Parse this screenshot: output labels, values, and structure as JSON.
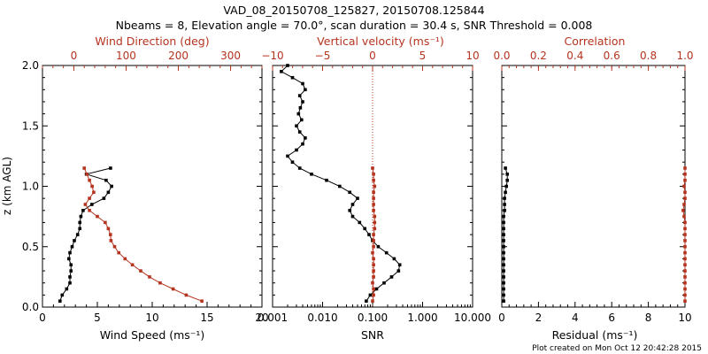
{
  "title": {
    "line1": "VAD_08_20150708_125827, 20150708.125844",
    "line2": "Nbeams = 8, Elevation angle = 70.0°, scan duration = 30.4 s, SNR Threshold = 0.008"
  },
  "footer": "Plot created on Mon Oct 12 20:42:28 2015",
  "colors": {
    "red": "#b5341f",
    "black": "#000000"
  },
  "chart_data": [
    {
      "type": "line",
      "id": "wind",
      "ylabel": "z (km AGL)",
      "ylim": [
        0,
        2.0
      ],
      "yticks": [
        "0.0",
        "0.5",
        "1.0",
        "1.5",
        "2.0"
      ],
      "bottom_axis": {
        "label": "Wind Speed (ms⁻¹)",
        "lim": [
          0,
          20
        ],
        "ticks": [
          "0",
          "5",
          "10",
          "15",
          "20"
        ]
      },
      "top_axis": {
        "label": "Wind Direction (deg)",
        "lim": [
          -60,
          360
        ],
        "ticks": [
          "0",
          "100",
          "200",
          "300"
        ]
      },
      "series": [
        {
          "name": "Wind Speed",
          "axis": "bottom",
          "color": "#000000",
          "z": [
            0.05,
            0.1,
            0.15,
            0.2,
            0.25,
            0.3,
            0.35,
            0.4,
            0.45,
            0.5,
            0.55,
            0.6,
            0.65,
            0.7,
            0.75,
            0.8,
            0.85,
            0.9,
            0.95,
            1.0,
            1.05,
            1.1,
            1.15
          ],
          "values": [
            1.6,
            1.8,
            2.2,
            2.5,
            2.5,
            2.6,
            2.6,
            2.4,
            2.5,
            2.7,
            2.9,
            3.2,
            3.4,
            3.4,
            3.5,
            3.7,
            4.5,
            5.6,
            6.0,
            6.3,
            5.8,
            4.0,
            6.2
          ]
        },
        {
          "name": "Wind Direction",
          "axis": "top",
          "color": "#b5341f",
          "z": [
            0.05,
            0.1,
            0.15,
            0.2,
            0.25,
            0.3,
            0.35,
            0.4,
            0.45,
            0.5,
            0.55,
            0.6,
            0.65,
            0.7,
            0.75,
            0.8,
            0.85,
            0.9,
            0.95,
            1.0,
            1.05,
            1.1,
            1.15
          ],
          "values": [
            245,
            215,
            190,
            165,
            145,
            128,
            112,
            98,
            86,
            78,
            71,
            70,
            66,
            60,
            45,
            30,
            22,
            30,
            38,
            35,
            30,
            25,
            20
          ]
        }
      ]
    },
    {
      "type": "line",
      "id": "snr",
      "ylim": [
        0,
        2.0
      ],
      "bottom_axis": {
        "label": "SNR",
        "scale": "log",
        "lim": [
          0.001,
          10
        ],
        "ticks": [
          "0.001",
          "0.010",
          "0.100",
          "1.000",
          "10.000"
        ]
      },
      "top_axis": {
        "label": "Vertical velocity (ms⁻¹)",
        "lim": [
          -10,
          10
        ],
        "ticks": [
          "−10",
          "−5",
          "0",
          "5",
          "10"
        ]
      },
      "reference_line": {
        "axis": "top",
        "value": 0,
        "style": "dotted",
        "color": "#b5341f"
      },
      "series": [
        {
          "name": "SNR",
          "axis": "bottom",
          "color": "#000000",
          "z": [
            0.05,
            0.1,
            0.15,
            0.2,
            0.25,
            0.3,
            0.35,
            0.4,
            0.45,
            0.5,
            0.55,
            0.6,
            0.65,
            0.7,
            0.75,
            0.8,
            0.85,
            0.9,
            0.95,
            1.0,
            1.05,
            1.1,
            1.15,
            1.2,
            1.25,
            1.3,
            1.35,
            1.4,
            1.45,
            1.5,
            1.55,
            1.6,
            1.65,
            1.7,
            1.75,
            1.8,
            1.85,
            1.9,
            1.95,
            2.0
          ],
          "values": [
            0.075,
            0.09,
            0.12,
            0.17,
            0.24,
            0.33,
            0.35,
            0.27,
            0.19,
            0.13,
            0.1,
            0.085,
            0.07,
            0.055,
            0.04,
            0.035,
            0.04,
            0.05,
            0.035,
            0.022,
            0.012,
            0.006,
            0.0035,
            0.0025,
            0.002,
            0.003,
            0.004,
            0.0045,
            0.0035,
            0.003,
            0.0038,
            0.0033,
            0.0036,
            0.004,
            0.0035,
            0.0045,
            0.004,
            0.0025,
            0.0015,
            0.002
          ]
        },
        {
          "name": "Vertical velocity",
          "axis": "top",
          "color": "#b5341f",
          "z": [
            0.05,
            0.1,
            0.15,
            0.2,
            0.25,
            0.3,
            0.35,
            0.4,
            0.45,
            0.5,
            0.55,
            0.6,
            0.65,
            0.7,
            0.75,
            0.8,
            0.85,
            0.9,
            0.95,
            1.0,
            1.05,
            1.1,
            1.15
          ],
          "values": [
            0.0,
            0.1,
            0.1,
            0.0,
            0.1,
            0.1,
            0.1,
            0.1,
            0.0,
            0.1,
            0.1,
            0.1,
            0.2,
            0.2,
            0.2,
            0.1,
            0.1,
            0.1,
            0.1,
            0.2,
            0.1,
            0.1,
            0.0
          ]
        }
      ]
    },
    {
      "type": "line",
      "id": "residual",
      "ylim": [
        0,
        2.0
      ],
      "bottom_axis": {
        "label": "Residual (ms⁻¹)",
        "lim": [
          0,
          10
        ],
        "ticks": [
          "0",
          "2",
          "4",
          "6",
          "8",
          "10"
        ]
      },
      "top_axis": {
        "label": "Correlation",
        "lim": [
          0,
          1
        ],
        "ticks": [
          "0.0",
          "0.2",
          "0.4",
          "0.6",
          "0.8",
          "1.0"
        ]
      },
      "series": [
        {
          "name": "Residual",
          "axis": "bottom",
          "color": "#000000",
          "z": [
            0.05,
            0.1,
            0.15,
            0.2,
            0.25,
            0.3,
            0.35,
            0.4,
            0.45,
            0.5,
            0.55,
            0.6,
            0.65,
            0.7,
            0.75,
            0.8,
            0.85,
            0.9,
            0.95,
            1.0,
            1.05,
            1.1,
            1.15
          ],
          "values": [
            0.1,
            0.1,
            0.1,
            0.1,
            0.1,
            0.1,
            0.1,
            0.1,
            0.1,
            0.1,
            0.1,
            0.1,
            0.1,
            0.1,
            0.1,
            0.15,
            0.15,
            0.15,
            0.2,
            0.25,
            0.3,
            0.3,
            0.2
          ]
        },
        {
          "name": "Correlation",
          "axis": "top",
          "color": "#b5341f",
          "z": [
            0.05,
            0.1,
            0.15,
            0.2,
            0.25,
            0.3,
            0.35,
            0.4,
            0.45,
            0.5,
            0.55,
            0.6,
            0.65,
            0.7,
            0.75,
            0.8,
            0.85,
            0.9,
            0.95,
            1.0,
            1.05,
            1.1,
            1.15
          ],
          "values": [
            1.0,
            1.0,
            1.0,
            1.0,
            1.0,
            1.0,
            1.0,
            1.0,
            1.0,
            1.0,
            1.0,
            1.0,
            1.0,
            1.0,
            0.995,
            0.99,
            0.995,
            1.0,
            1.0,
            0.995,
            1.0,
            1.0,
            1.0
          ]
        }
      ]
    }
  ]
}
